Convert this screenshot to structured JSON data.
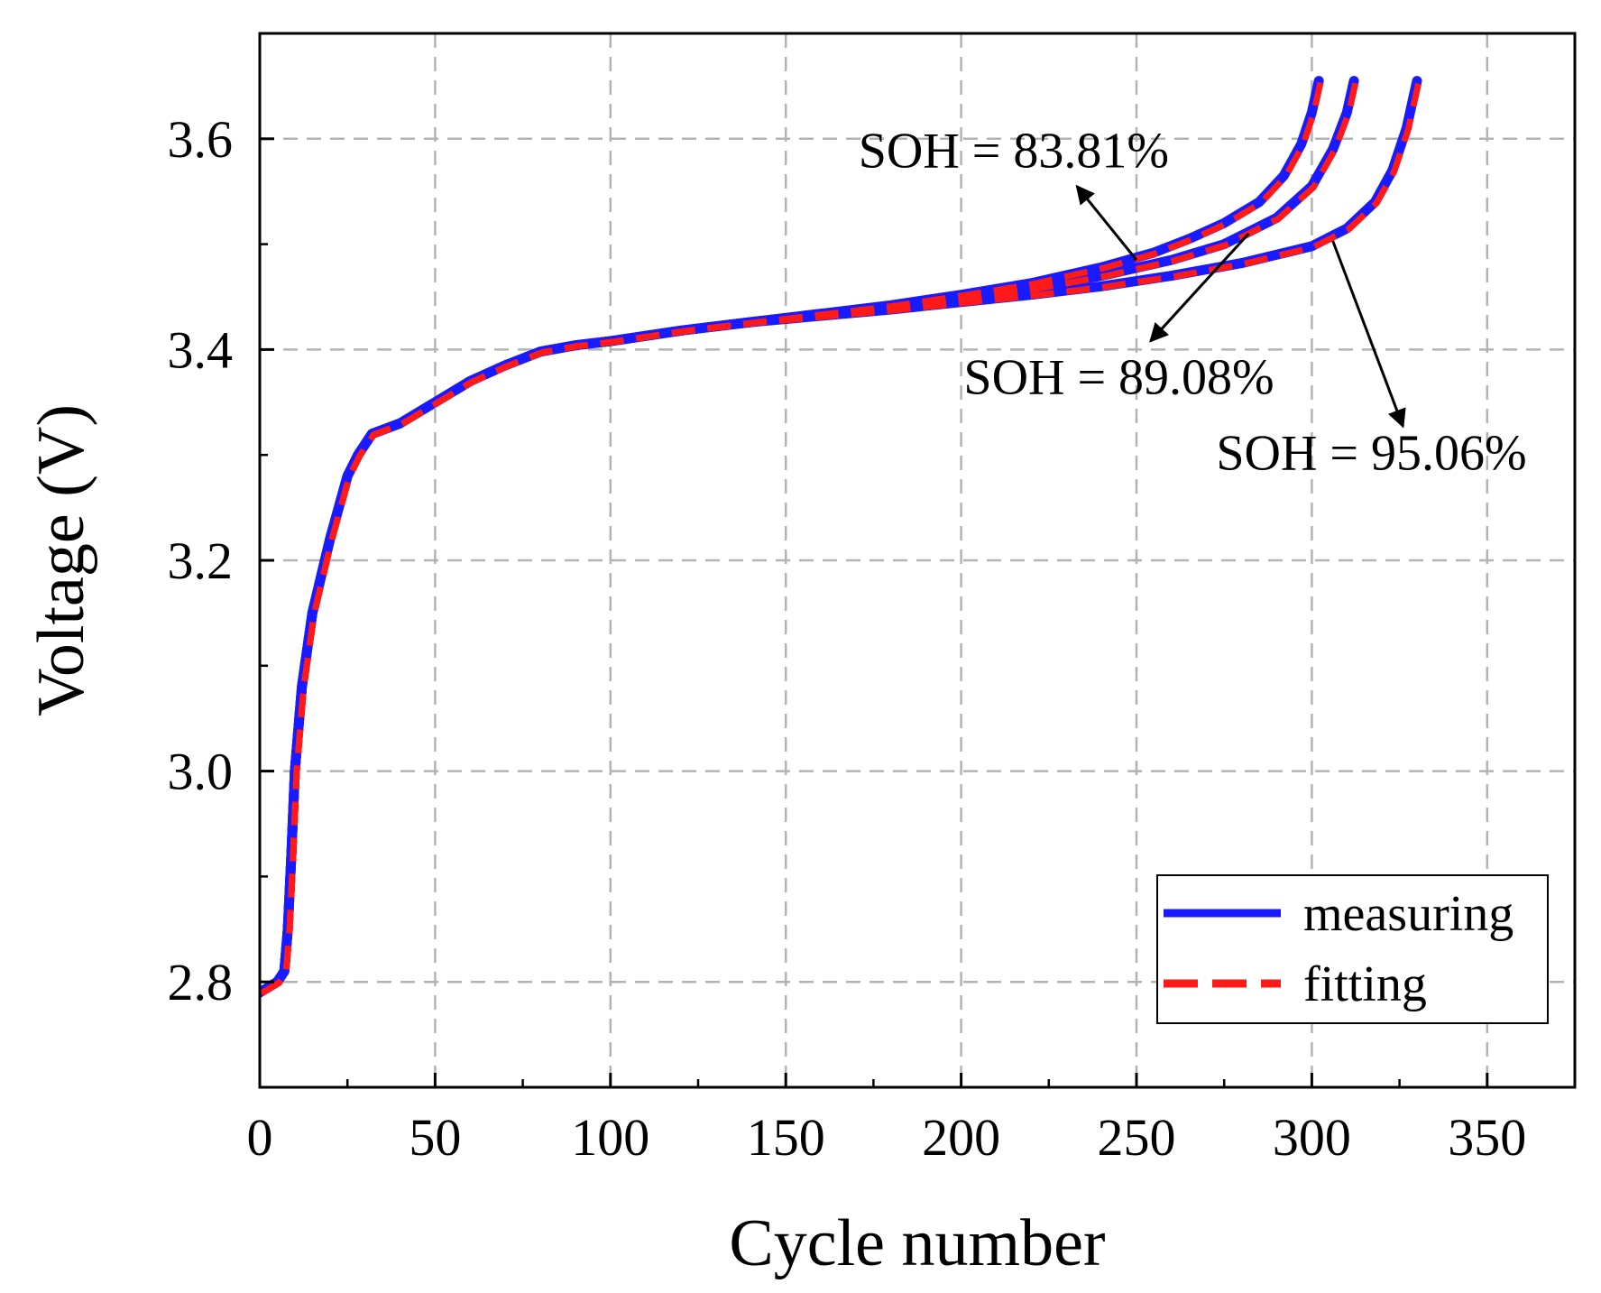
{
  "chart_data": {
    "type": "line",
    "xlabel": "Cycle number",
    "ylabel": "Voltage (V)",
    "xlim": [
      0,
      375
    ],
    "ylim": [
      2.7,
      3.7
    ],
    "x_ticks": [
      0,
      50,
      100,
      150,
      200,
      250,
      300,
      350
    ],
    "y_ticks": [
      2.8,
      3.0,
      3.2,
      3.4,
      3.6
    ],
    "x_tick_labels": [
      "0",
      "50",
      "100",
      "150",
      "200",
      "250",
      "300",
      "350"
    ],
    "y_tick_labels": [
      "2.8",
      "3.0",
      "3.2",
      "3.4",
      "3.6"
    ],
    "grid": true,
    "legend": {
      "placement": "bottom-right",
      "entries": [
        {
          "label": "measuring",
          "color": "#1a1aff",
          "style": "solid"
        },
        {
          "label": "fitting",
          "color": "#ff1a1a",
          "style": "dashed"
        }
      ]
    },
    "curves": [
      {
        "soh_label": "SOH = 83.81%",
        "x": [
          0,
          5,
          7,
          8,
          9,
          10,
          12,
          15,
          20,
          25,
          28,
          32,
          40,
          50,
          60,
          70,
          80,
          90,
          100,
          120,
          140,
          160,
          180,
          200,
          220,
          240,
          255,
          265,
          275,
          285,
          292,
          297,
          300,
          302
        ],
        "y": [
          2.79,
          2.8,
          2.81,
          2.85,
          2.92,
          3.0,
          3.08,
          3.15,
          3.22,
          3.28,
          3.3,
          3.32,
          3.33,
          3.35,
          3.37,
          3.385,
          3.398,
          3.404,
          3.408,
          3.418,
          3.426,
          3.434,
          3.442,
          3.452,
          3.463,
          3.478,
          3.492,
          3.505,
          3.52,
          3.54,
          3.565,
          3.595,
          3.625,
          3.655
        ]
      },
      {
        "soh_label": "SOH = 89.08%",
        "x": [
          0,
          5,
          7,
          8,
          9,
          10,
          12,
          15,
          20,
          25,
          28,
          32,
          40,
          50,
          60,
          70,
          80,
          90,
          100,
          120,
          140,
          160,
          180,
          200,
          220,
          240,
          260,
          275,
          290,
          300,
          306,
          310,
          312
        ],
        "y": [
          2.79,
          2.8,
          2.81,
          2.85,
          2.92,
          3.0,
          3.08,
          3.15,
          3.22,
          3.28,
          3.3,
          3.32,
          3.33,
          3.35,
          3.37,
          3.385,
          3.398,
          3.404,
          3.408,
          3.418,
          3.426,
          3.434,
          3.44,
          3.448,
          3.458,
          3.47,
          3.485,
          3.5,
          3.525,
          3.555,
          3.59,
          3.625,
          3.655
        ]
      },
      {
        "soh_label": "SOH = 95.06%",
        "x": [
          0,
          5,
          7,
          8,
          9,
          10,
          12,
          15,
          20,
          25,
          28,
          32,
          40,
          50,
          60,
          70,
          80,
          90,
          100,
          120,
          140,
          160,
          180,
          200,
          220,
          240,
          260,
          280,
          300,
          310,
          318,
          323,
          327,
          330
        ],
        "y": [
          2.79,
          2.8,
          2.81,
          2.85,
          2.92,
          3.0,
          3.08,
          3.15,
          3.22,
          3.28,
          3.3,
          3.32,
          3.33,
          3.35,
          3.37,
          3.385,
          3.398,
          3.404,
          3.408,
          3.418,
          3.426,
          3.432,
          3.438,
          3.445,
          3.452,
          3.46,
          3.47,
          3.482,
          3.498,
          3.515,
          3.54,
          3.57,
          3.61,
          3.655
        ]
      }
    ],
    "annotations": [
      {
        "text": "SOH = 83.81%",
        "label_x": 215,
        "label_y": 3.59,
        "arrow_from": [
          250,
          3.485
        ],
        "arrow_to": [
          233,
          3.555
        ]
      },
      {
        "text": "SOH = 89.08%",
        "label_x": 245,
        "label_y": 3.375,
        "arrow_from": [
          282,
          3.51
        ],
        "arrow_to": [
          254,
          3.408
        ]
      },
      {
        "text": "SOH = 95.06%",
        "label_x": 317,
        "label_y": 3.303,
        "arrow_from": [
          306,
          3.503
        ],
        "arrow_to": [
          326,
          3.327
        ]
      }
    ]
  }
}
